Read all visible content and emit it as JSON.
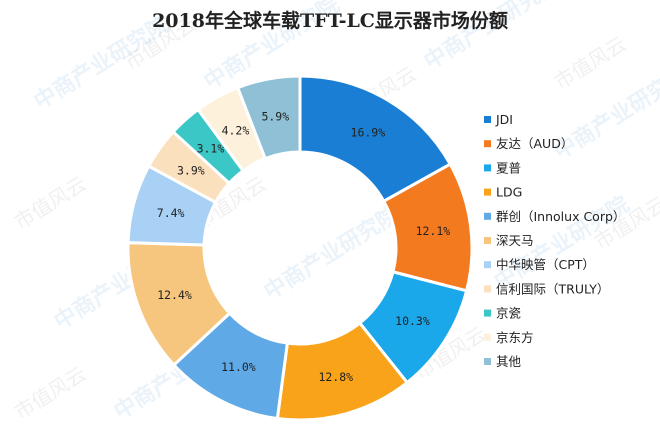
{
  "chart_data": {
    "type": "pie",
    "variant": "donut",
    "title": "2018年全球车载TFT-LC显示器市场份额",
    "categories": [
      "JDI",
      "友达（AUD）",
      "夏普",
      "LDG",
      "群创（Innolux Corp）",
      "深天马",
      "中华映管（CPT）",
      "信利国际（TRULY）",
      "京瓷",
      "京东方",
      "其他"
    ],
    "values": [
      16.9,
      12.1,
      10.3,
      12.8,
      11.0,
      12.4,
      7.4,
      3.9,
      3.1,
      4.2,
      5.9
    ],
    "value_labels": [
      "16.9%",
      "12.1%",
      "10.3%",
      "12.8%",
      "11.0%",
      "12.4%",
      "7.4%",
      "3.9%",
      "3.1%",
      "4.2%",
      "5.9%"
    ],
    "unit": "%",
    "colors": [
      "#1a7fd4",
      "#f47a20",
      "#1aa8ea",
      "#f9a31b",
      "#5fa9e6",
      "#f6c57e",
      "#a9d0f5",
      "#fbe0bd",
      "#3cc7c7",
      "#fdf1dc",
      "#8fc0d6"
    ],
    "legend_position": "right",
    "start_angle_deg": 0,
    "direction": "clockwise"
  },
  "watermark": {
    "brand": "中商产业研究院",
    "secondary": "市值风云"
  }
}
